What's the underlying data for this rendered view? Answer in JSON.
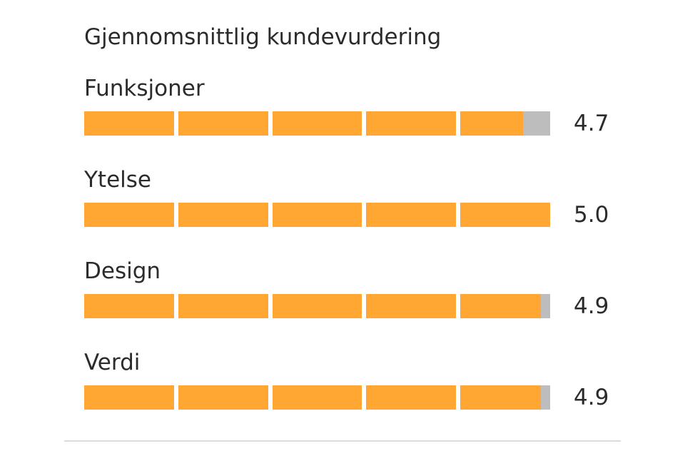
{
  "title": "Gjennomsnittlig kundevurdering",
  "max_rating": 5,
  "colors": {
    "fill": "#FFA633",
    "empty": "#BDBDBD"
  },
  "ratings": [
    {
      "label": "Funksjoner",
      "value": 4.7,
      "value_text": "4.7"
    },
    {
      "label": "Ytelse",
      "value": 5.0,
      "value_text": "5.0"
    },
    {
      "label": "Design",
      "value": 4.9,
      "value_text": "4.9"
    },
    {
      "label": "Verdi",
      "value": 4.9,
      "value_text": "4.9"
    }
  ]
}
